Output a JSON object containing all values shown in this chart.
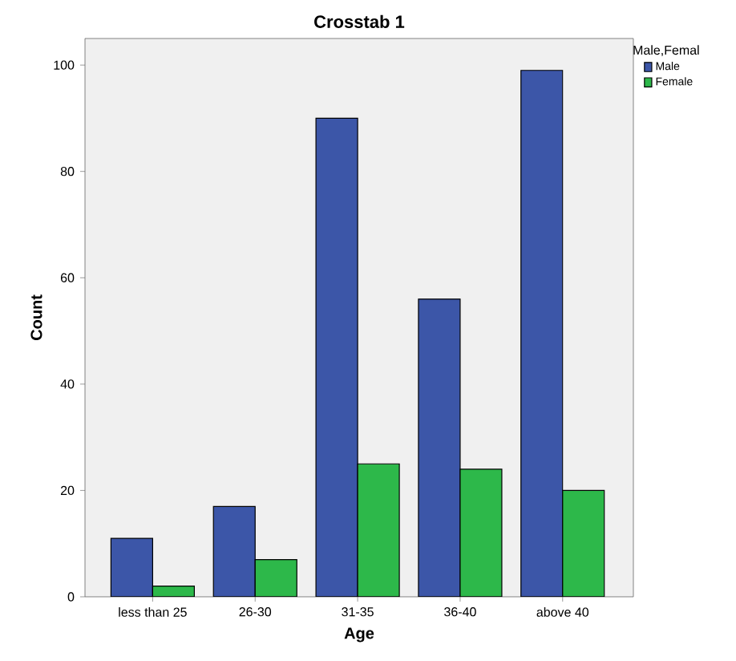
{
  "chart_data": {
    "type": "bar",
    "title": "Crosstab 1",
    "xlabel": "Age",
    "ylabel": "Count",
    "legend_title": "Male,Femal",
    "categories": [
      "less than 25",
      "26-30",
      "31-35",
      "36-40",
      "above 40"
    ],
    "series": [
      {
        "name": "Male",
        "color": "#3c56a8",
        "values": [
          11,
          17,
          90,
          56,
          99
        ]
      },
      {
        "name": "Female",
        "color": "#2db84a",
        "values": [
          2,
          7,
          25,
          24,
          20
        ]
      }
    ],
    "ylim": [
      0,
      105
    ],
    "yticks": [
      0,
      20,
      40,
      60,
      80,
      100
    ],
    "legend": "top right"
  }
}
